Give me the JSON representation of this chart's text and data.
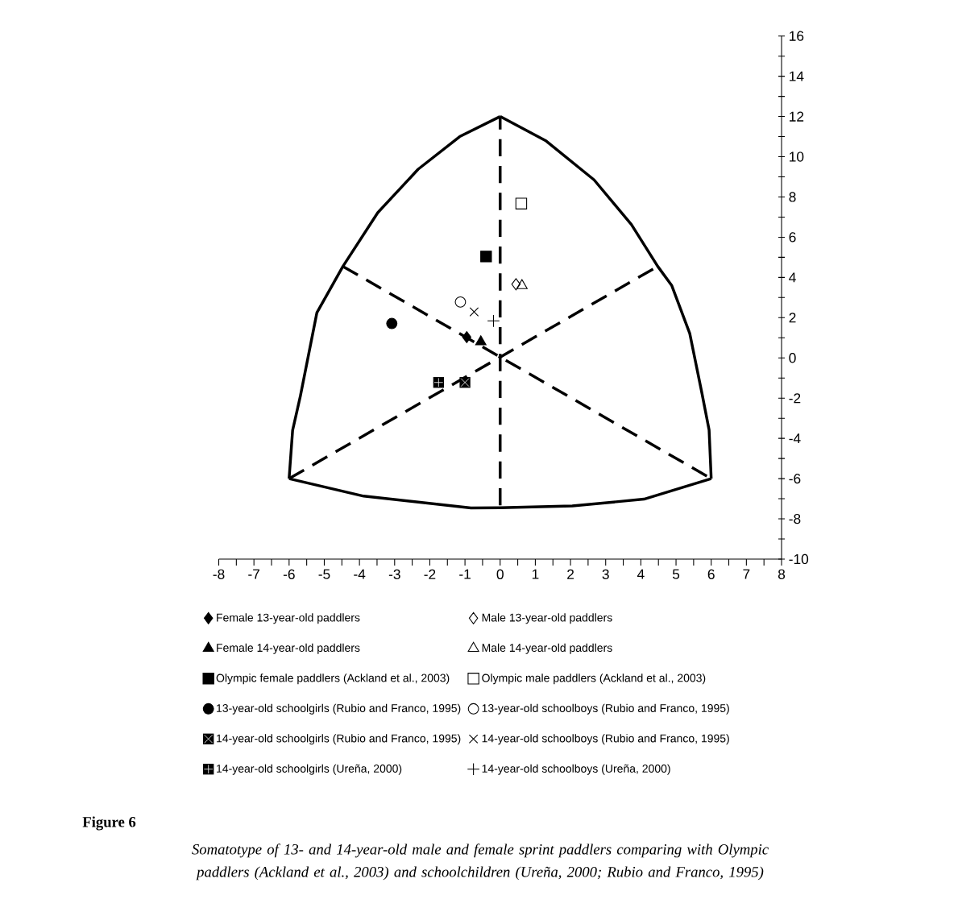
{
  "chart_data": {
    "type": "scatter",
    "series": [
      {
        "type": "line",
        "color": "#000000",
        "line_style": "solid",
        "marker": "none",
        "x": [
          -6,
          -5.9,
          -5.68,
          -5.21,
          -4.47,
          -3.48,
          -2.33,
          -1.15,
          0
        ],
        "values": [
          -6,
          -3.6,
          -1.9,
          2.25,
          4.55,
          7.22,
          9.38,
          11.0,
          12
        ]
      },
      {
        "type": "line",
        "color": "#000000",
        "line_style": "solid",
        "marker": "none",
        "x": [
          0,
          1.31,
          2.67,
          3.73,
          4.48,
          4.88,
          5.39,
          5.74,
          5.94,
          6
        ],
        "values": [
          12,
          10.78,
          8.85,
          6.63,
          4.55,
          3.59,
          1.22,
          -1.79,
          -3.58,
          -6
        ]
      },
      {
        "type": "line",
        "color": "#000000",
        "line_style": "solid",
        "marker": "none",
        "x": [
          -6,
          -3.88,
          -0.83,
          0,
          2.05,
          4.09,
          6
        ],
        "values": [
          -6,
          -6.87,
          -7.46,
          -7.45,
          -7.36,
          -7.02,
          -6
        ]
      },
      {
        "type": "line",
        "color": "#000000",
        "line_style": "dashed",
        "marker": "none",
        "x": [
          -4.47,
          6
        ],
        "values": [
          4.55,
          -6
        ]
      },
      {
        "type": "line",
        "color": "#000000",
        "line_style": "dashed",
        "marker": "none",
        "x": [
          -6,
          4.48
        ],
        "values": [
          -6,
          4.55
        ]
      },
      {
        "name": "Female 13-year-old paddlers",
        "color": "#000000",
        "marker": "diamond",
        "x": [
          -0.95
        ],
        "values": [
          1.03
        ]
      },
      {
        "name": "Male 13-year-old paddlers",
        "color": "#000000",
        "marker": "diamond",
        "x": [
          0.45
        ],
        "values": [
          3.66
        ]
      },
      {
        "name": "Female 14-year-old paddlers",
        "color": "#000000",
        "marker": "triangle",
        "x": [
          -0.55
        ],
        "values": [
          0.8
        ]
      },
      {
        "name": "Male 14-year-old paddlers",
        "color": "#000000",
        "marker": "triangle",
        "x": [
          0.62
        ],
        "values": [
          3.59
        ]
      },
      {
        "name": "Olympic female paddlers (Ackland et al., 2003)",
        "color": "#000000",
        "marker": "square",
        "x": [
          -0.4
        ],
        "values": [
          5.04
        ]
      },
      {
        "name": "Olympic male paddlers (Ackland et al., 2003)",
        "color": "#000000",
        "marker": "square",
        "x": [
          0.6
        ],
        "values": [
          7.67
        ]
      },
      {
        "name": "13-year-old schoolgirls (Rubio and Franco, 1995)",
        "color": "#000000",
        "marker": "circle",
        "x": [
          -3.08
        ],
        "values": [
          1.71
        ]
      },
      {
        "name": "13-year-old schoolboys (Rubio and Franco, 1995)",
        "color": "#000000",
        "marker": "circle",
        "x": [
          -1.13
        ],
        "values": [
          2.78
        ]
      },
      {
        "name": "14-year-old schoolgirls (Rubio and Franco, 1995)",
        "color": "#000000",
        "marker": "square",
        "x": [
          -1.0
        ],
        "values": [
          -1.22
        ]
      },
      {
        "name": "14-year-old schoolboys (Rubio and Franco, 1995)",
        "color": "#000000",
        "marker": "cross",
        "x": [
          -0.74
        ],
        "values": [
          2.29
        ]
      },
      {
        "name": "14-year-old schoolgirls (Ureña, 2000)",
        "color": "#000000",
        "marker": "square",
        "x": [
          -1.75
        ],
        "values": [
          -1.22
        ]
      },
      {
        "name": "14-year-old schoolboys (Ureña, 2000)",
        "color": "#000000",
        "marker": "cross",
        "x": [
          -0.19
        ],
        "values": [
          1.84
        ]
      }
    ],
    "xlim": [
      -8,
      8
    ],
    "xticks": [
      -8,
      {
        "value": -7.5,
        "label": null
      },
      -7,
      {
        "value": -6.5,
        "label": null
      },
      -6,
      {
        "value": -5.5,
        "label": null
      },
      -5,
      {
        "value": -4.5,
        "label": null
      },
      -4,
      {
        "value": -3.5,
        "label": null
      },
      -3,
      {
        "value": -2.5,
        "label": null
      },
      -2,
      {
        "value": -1.5,
        "label": null
      },
      -1,
      {
        "value": -0.5,
        "label": null
      },
      0,
      {
        "value": 0.5,
        "label": null
      },
      1,
      {
        "value": 1.5,
        "label": null
      },
      2,
      {
        "value": 2.5,
        "label": null
      },
      3,
      {
        "value": 3.5,
        "label": null
      },
      4,
      {
        "value": 4.5,
        "label": null
      },
      5,
      {
        "value": 5.5,
        "label": null
      },
      6,
      {
        "value": 6.5,
        "label": null
      },
      7,
      {
        "value": 7.5,
        "label": null
      },
      8
    ],
    "ylim": [
      -10,
      16
    ],
    "yticks": [
      -10,
      {
        "value": -9,
        "label": null
      },
      -8,
      {
        "value": -7,
        "label": null
      },
      -6,
      {
        "value": -5,
        "label": null
      },
      -4,
      {
        "value": -3,
        "label": null
      },
      -2,
      {
        "value": -1,
        "label": null
      },
      0,
      {
        "value": 1,
        "label": null
      },
      2,
      {
        "value": 3,
        "label": null
      },
      4,
      {
        "value": 5,
        "label": null
      },
      6,
      {
        "value": 7,
        "label": null
      },
      8,
      {
        "value": 9,
        "label": null
      },
      10,
      {
        "value": 11,
        "label": null
      },
      12,
      {
        "value": 13,
        "label": null
      },
      14,
      {
        "value": 15,
        "label": null
      },
      16
    ],
    "ref_lines": [
      {
        "axis": "x",
        "value": 0,
        "color": "#000000",
        "line_style": "dashed"
      }
    ],
    "grid": false,
    "legend": "bottom",
    "annotations": [
      "Figure 6",
      "Somatotype of 13- and 14-year-old male and female sprint paddlers comparing with Olympic paddlers (Ackland et al., 2003) and schoolchildren (Ureña, 2000; Rubio and Franco, 1995)"
    ]
  }
}
